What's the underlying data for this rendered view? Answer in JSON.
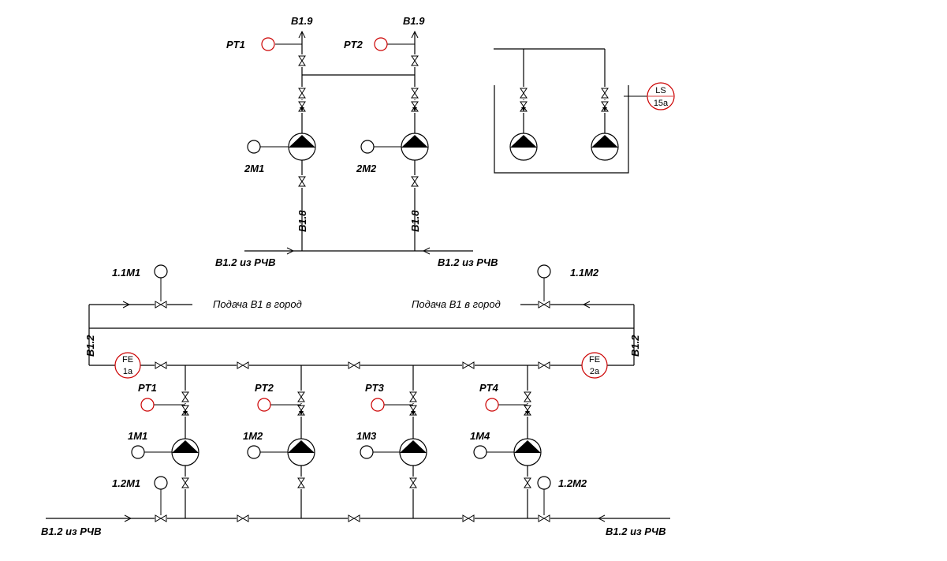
{
  "colors": {
    "line": "#000000",
    "instrument": "#cc0000"
  },
  "upper": {
    "outlet_label_1": "В1.9",
    "outlet_label_2": "В1.9",
    "pt_1": "PT1",
    "pt_2": "PT2",
    "motor_1": "2M1",
    "motor_2": "2M2",
    "suction_label_1": "В1.8",
    "suction_label_2": "В1.8",
    "inlet_left": "В1.2 из РЧВ",
    "inlet_right": "В1.2 из РЧВ"
  },
  "tank": {
    "level_tag": "LS",
    "level_num": "15a"
  },
  "lower": {
    "valve_motor_left": "1.1M1",
    "valve_motor_right": "1.1M2",
    "supply_left": "Подача В1 в город",
    "supply_right": "Подача В1 в город",
    "header_left": "В1.2",
    "header_right": "В1.2",
    "fe_left_tag": "FE",
    "fe_left_num": "1a",
    "fe_right_tag": "FE",
    "fe_right_num": "2a",
    "pts": [
      "PT1",
      "PT2",
      "PT3",
      "PT4"
    ],
    "motors": [
      "1M1",
      "1M2",
      "1M3",
      "1M4"
    ],
    "suction_valve_left": "1.2M1",
    "suction_valve_right": "1.2M2",
    "inlet_left": "В1.2 из РЧВ",
    "inlet_right": "В1.2 из РЧВ"
  }
}
